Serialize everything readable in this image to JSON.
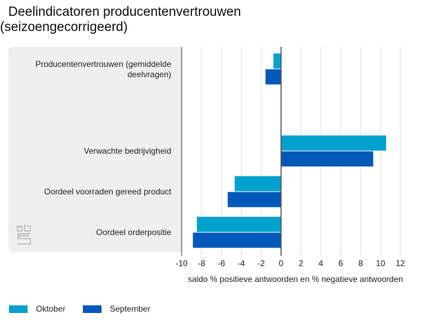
{
  "chart_data": {
    "type": "bar",
    "orientation": "horizontal",
    "title": "Deelindicatoren producentenvertrouwen",
    "subtitle": "(seizoengecorrigeerd)",
    "xlabel": "saldo % positieve antwoorden en % negatieve antwoorden",
    "ylabel": "",
    "xlim": [
      -10,
      12
    ],
    "xticks": [
      "-10",
      "-8",
      "-6",
      "-4",
      "-2",
      "0",
      "2",
      "4",
      "6",
      "8",
      "10",
      "12"
    ],
    "grid": true,
    "legend_position": "bottom-left",
    "categories": [
      "Producentenvertrouwen (gemiddelde deelvragen)",
      "Verwachte bedrijvigheid",
      "Oordeel voorraden gereed product",
      "Oordeel orderpositie"
    ],
    "category_lines": [
      [
        "Producentenvertrouwen (gemiddelde",
        "deelvragen)"
      ],
      [
        "Verwachte bedrijvigheid"
      ],
      [
        "Oordeel voorraden gereed product"
      ],
      [
        "Oordeel orderpositie"
      ]
    ],
    "series": [
      {
        "name": "Oktober",
        "color": "#00a1cd",
        "values": [
          -0.8,
          10.6,
          -4.7,
          -8.5
        ]
      },
      {
        "name": "September",
        "color": "#0058b8",
        "values": [
          -1.6,
          9.3,
          -5.4,
          -8.9
        ]
      }
    ]
  },
  "logo": "cbs-logo-icon"
}
